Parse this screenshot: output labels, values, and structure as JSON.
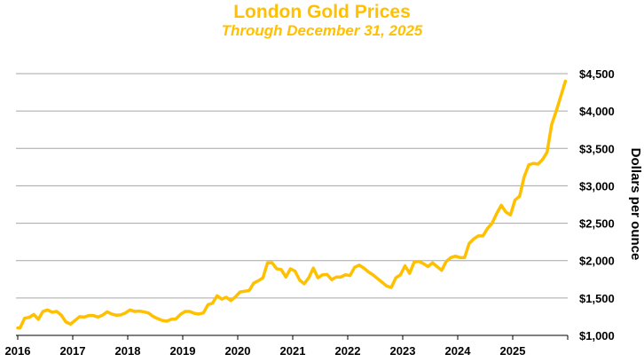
{
  "chart_data": {
    "type": "line",
    "title": "London Gold Prices",
    "subtitle": "Through December 31, 2025",
    "xlabel": "",
    "ylabel": "Dollars per ounce",
    "xlim": [
      2016,
      2026
    ],
    "ylim": [
      1000,
      4500
    ],
    "x_ticks": [
      "2016",
      "2017",
      "2018",
      "2019",
      "2020",
      "2021",
      "2022",
      "2023",
      "2024",
      "2025"
    ],
    "y_ticks": [
      {
        "value": 1000,
        "label": "$1,000"
      },
      {
        "value": 1500,
        "label": "$1,500"
      },
      {
        "value": 2000,
        "label": "$2,000"
      },
      {
        "value": 2500,
        "label": "$2,500"
      },
      {
        "value": 3000,
        "label": "$3,000"
      },
      {
        "value": 3500,
        "label": "$3,500"
      },
      {
        "value": 4000,
        "label": "$4,000"
      },
      {
        "value": 4500,
        "label": "$4,500"
      }
    ],
    "grid": "horizontal",
    "y_axis_side": "right",
    "line_color": "#FFC000",
    "title_color": "#FFC000",
    "series": [
      {
        "start_year": 2016,
        "frequency": "monthly",
        "values": [
          1100,
          1230,
          1240,
          1280,
          1215,
          1320,
          1340,
          1310,
          1320,
          1270,
          1180,
          1150,
          1200,
          1250,
          1245,
          1265,
          1265,
          1245,
          1270,
          1315,
          1285,
          1270,
          1275,
          1300,
          1340,
          1320,
          1325,
          1315,
          1300,
          1255,
          1225,
          1200,
          1190,
          1215,
          1220,
          1280,
          1320,
          1320,
          1295,
          1285,
          1300,
          1410,
          1430,
          1530,
          1485,
          1510,
          1465,
          1515,
          1580,
          1590,
          1600,
          1700,
          1730,
          1770,
          1970,
          1970,
          1890,
          1880,
          1780,
          1890,
          1860,
          1740,
          1690,
          1770,
          1900,
          1770,
          1810,
          1815,
          1745,
          1780,
          1780,
          1810,
          1800,
          1910,
          1940,
          1900,
          1850,
          1810,
          1760,
          1710,
          1660,
          1640,
          1770,
          1810,
          1930,
          1830,
          1980,
          1990,
          1960,
          1920,
          1970,
          1920,
          1870,
          1990,
          2040,
          2060,
          2040,
          2040,
          2230,
          2290,
          2330,
          2330,
          2430,
          2500,
          2630,
          2740,
          2650,
          2610,
          2810,
          2860,
          3120,
          3280,
          3300,
          3290,
          3350,
          3450,
          3820,
          4000,
          4200,
          4400
        ]
      }
    ]
  }
}
